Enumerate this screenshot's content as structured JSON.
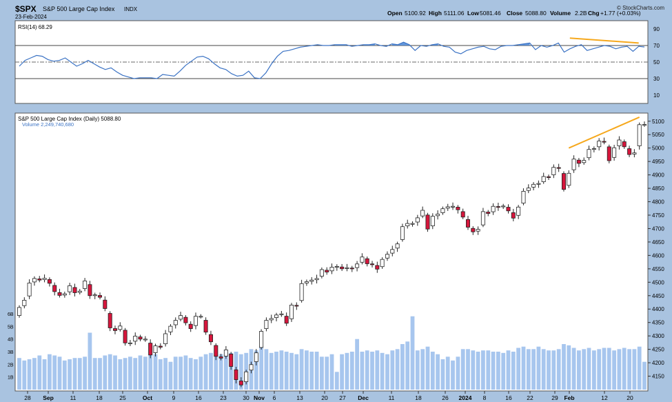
{
  "header": {
    "symbol": "$SPX",
    "name": "S&P 500 Large Cap Index",
    "exchange": "INDX",
    "date": "23-Feb-2024",
    "open_label": "Open",
    "open": "5100.92",
    "high_label": "High",
    "high": "5111.06",
    "low_label": "Low",
    "low": "5081.46",
    "close_label": "Close",
    "close": "5088.80",
    "volume_label": "Volume",
    "volume": "2.2B",
    "chg_label": "Chg",
    "chg": "+1.77 (+0.03%)",
    "credit": "© StockCharts.com"
  },
  "colors": {
    "background": "#ffffff",
    "frame": "#a9c3e0",
    "up_candle": "#ffffff",
    "down_candle": "#d6163c",
    "rsi_line": "#3a72c4",
    "rsi_fill": "#4a86d6",
    "volume": "#a7c6ee",
    "trendline": "#f6a81c"
  },
  "chart_data": [
    {
      "type": "line",
      "title": "RSI(14) 68.29",
      "ylim": [
        0,
        100
      ],
      "yticks": [
        "10",
        "30",
        "50",
        "70",
        "90"
      ],
      "reference_lines": [
        30,
        50,
        70
      ],
      "series": [
        {
          "name": "RSI(14)",
          "values": [
            45,
            52,
            55,
            58,
            57,
            53,
            51,
            52,
            55,
            50,
            45,
            48,
            52,
            48,
            44,
            41,
            43,
            38,
            34,
            32,
            30,
            31,
            31,
            31,
            30,
            35,
            34,
            33,
            39,
            46,
            51,
            56,
            57,
            54,
            48,
            43,
            41,
            36,
            33,
            34,
            39,
            31,
            30,
            37,
            48,
            57,
            63,
            64,
            66,
            68,
            69,
            70,
            71,
            70,
            70,
            71,
            71,
            71,
            69,
            70,
            71,
            71,
            72,
            70,
            69,
            72,
            71,
            74,
            71,
            64,
            70,
            69,
            71,
            72,
            69,
            68,
            62,
            60,
            64,
            66,
            68,
            69,
            66,
            65,
            69,
            70,
            70,
            71,
            72,
            73,
            65,
            70,
            68,
            70,
            73,
            62,
            66,
            69,
            71,
            64,
            66,
            68,
            70,
            69,
            66,
            68,
            69,
            63,
            69,
            68.29
          ]
        }
      ],
      "annotations": [
        "bearish divergence trendline (orange)"
      ]
    },
    {
      "type": "candlestick",
      "title": "S&P 500 Large Cap Index (Daily) 5088.80",
      "volume_label": "Volume 2,249,740,680",
      "ylim": [
        4100,
        5120
      ],
      "yticks": [
        "4150",
        "4200",
        "4250",
        "4300",
        "4350",
        "4400",
        "4450",
        "4500",
        "4550",
        "4600",
        "4650",
        "4700",
        "4750",
        "4800",
        "4850",
        "4900",
        "4950",
        "5000",
        "5050",
        "5100"
      ],
      "volume_ticks": [
        "1B",
        "2B",
        "3B",
        "4B",
        "5B",
        "6B"
      ],
      "xticks": [
        "28",
        "Sep",
        "11",
        "18",
        "25",
        "Oct",
        "9",
        "16",
        "23",
        "30",
        "Nov",
        "6",
        "13",
        "20",
        "27",
        "Dec",
        "11",
        "18",
        "26",
        "2024",
        "8",
        "16",
        "22",
        "29",
        "Feb",
        "12",
        "20"
      ],
      "x": [
        "2023-08-25",
        "2023-08-28",
        "2023-08-29",
        "2023-08-30",
        "2023-08-31",
        "2023-09-01",
        "2023-09-05",
        "2023-09-06",
        "2023-09-07",
        "2023-09-08",
        "2023-09-11",
        "2023-09-12",
        "2023-09-13",
        "2023-09-14",
        "2023-09-15",
        "2023-09-18",
        "2023-09-19",
        "2023-09-20",
        "2023-09-21",
        "2023-09-22",
        "2023-09-25",
        "2023-09-26",
        "2023-09-27",
        "2023-09-28",
        "2023-09-29",
        "2023-10-02",
        "2023-10-03",
        "2023-10-04",
        "2023-10-05",
        "2023-10-06",
        "2023-10-09",
        "2023-10-10",
        "2023-10-11",
        "2023-10-12",
        "2023-10-13",
        "2023-10-16",
        "2023-10-17",
        "2023-10-18",
        "2023-10-19",
        "2023-10-20",
        "2023-10-23",
        "2023-10-24",
        "2023-10-25",
        "2023-10-26",
        "2023-10-27",
        "2023-10-30",
        "2023-10-31",
        "2023-11-01",
        "2023-11-02",
        "2023-11-03",
        "2023-11-06",
        "2023-11-07",
        "2023-11-08",
        "2023-11-09",
        "2023-11-10",
        "2023-11-13",
        "2023-11-14",
        "2023-11-15",
        "2023-11-16",
        "2023-11-17",
        "2023-11-20",
        "2023-11-21",
        "2023-11-22",
        "2023-11-24",
        "2023-11-27",
        "2023-11-28",
        "2023-11-29",
        "2023-11-30",
        "2023-12-01",
        "2023-12-04",
        "2023-12-05",
        "2023-12-06",
        "2023-12-07",
        "2023-12-08",
        "2023-12-11",
        "2023-12-12",
        "2023-12-13",
        "2023-12-14",
        "2023-12-15",
        "2023-12-18",
        "2023-12-19",
        "2023-12-20",
        "2023-12-21",
        "2023-12-22",
        "2023-12-26",
        "2023-12-27",
        "2023-12-28",
        "2023-12-29",
        "2024-01-02",
        "2024-01-03",
        "2024-01-04",
        "2024-01-05",
        "2024-01-08",
        "2024-01-09",
        "2024-01-10",
        "2024-01-11",
        "2024-01-12",
        "2024-01-16",
        "2024-01-17",
        "2024-01-18",
        "2024-01-19",
        "2024-01-22",
        "2024-01-23",
        "2024-01-24",
        "2024-01-25",
        "2024-01-26",
        "2024-01-29",
        "2024-01-30",
        "2024-01-31",
        "2024-02-01",
        "2024-02-02",
        "2024-02-05",
        "2024-02-06",
        "2024-02-07",
        "2024-02-08",
        "2024-02-09",
        "2024-02-12",
        "2024-02-13",
        "2024-02-14",
        "2024-02-15",
        "2024-02-16",
        "2024-02-20",
        "2024-02-21",
        "2024-02-22",
        "2024-02-23"
      ],
      "close": [
        4406,
        4433,
        4497,
        4514,
        4508,
        4515,
        4496,
        4465,
        4451,
        4457,
        4487,
        4461,
        4467,
        4505,
        4450,
        4453,
        4444,
        4402,
        4330,
        4320,
        4337,
        4274,
        4274,
        4299,
        4288,
        4288,
        4229,
        4263,
        4258,
        4308,
        4336,
        4358,
        4376,
        4349,
        4327,
        4373,
        4373,
        4314,
        4278,
        4224,
        4217,
        4248,
        4186,
        4137,
        4117,
        4166,
        4193,
        4237,
        4317,
        4358,
        4365,
        4378,
        4382,
        4347,
        4415,
        4411,
        4495,
        4502,
        4508,
        4514,
        4547,
        4538,
        4556,
        4559,
        4550,
        4554,
        4550,
        4568,
        4594,
        4569,
        4567,
        4549,
        4585,
        4604,
        4622,
        4643,
        4707,
        4719,
        4719,
        4740,
        4768,
        4698,
        4746,
        4754,
        4774,
        4781,
        4783,
        4770,
        4743,
        4705,
        4688,
        4697,
        4763,
        4756,
        4783,
        4780,
        4784,
        4766,
        4739,
        4780,
        4839,
        4851,
        4865,
        4868,
        4894,
        4891,
        4928,
        4925,
        4846,
        4906,
        4959,
        4943,
        4954,
        4995,
        4998,
        5026,
        5022,
        4953,
        5001,
        5030,
        5005,
        4976,
        4982,
        5087,
        5088
      ],
      "volume_billions": [
        2.5,
        2.3,
        2.4,
        2.5,
        2.7,
        2.4,
        2.8,
        2.7,
        2.6,
        2.3,
        2.4,
        2.5,
        2.5,
        2.6,
        4.5,
        2.5,
        2.5,
        2.7,
        2.8,
        2.7,
        2.4,
        2.5,
        2.6,
        2.5,
        2.7,
        2.6,
        2.8,
        2.8,
        2.4,
        2.5,
        2.2,
        2.6,
        2.6,
        2.7,
        2.5,
        2.4,
        2.6,
        2.8,
        2.9,
        3.1,
        2.8,
        2.8,
        2.9,
        3.0,
        2.8,
        2.9,
        3.2,
        3.1,
        3.5,
        3.2,
        2.9,
        3.0,
        3.1,
        3.0,
        2.9,
        2.8,
        3.2,
        3.1,
        3.0,
        3.0,
        2.6,
        2.6,
        2.8,
        1.4,
        2.8,
        2.9,
        3.0,
        4.0,
        3.0,
        3.1,
        3.0,
        3.1,
        2.9,
        2.8,
        3.1,
        3.2,
        3.6,
        3.8,
        5.8,
        3.1,
        3.2,
        3.4,
        3.0,
        2.8,
        2.4,
        2.6,
        2.3,
        2.6,
        3.2,
        3.2,
        3.1,
        3.0,
        3.1,
        3.1,
        3.0,
        3.0,
        2.9,
        3.1,
        3.0,
        3.3,
        3.4,
        3.2,
        3.2,
        3.4,
        3.2,
        3.1,
        3.1,
        3.2,
        3.6,
        3.5,
        3.3,
        3.1,
        3.2,
        3.3,
        3.1,
        3.2,
        3.3,
        3.3,
        3.1,
        3.2,
        3.3,
        3.2,
        3.2,
        3.4,
        2.2
      ]
    }
  ]
}
